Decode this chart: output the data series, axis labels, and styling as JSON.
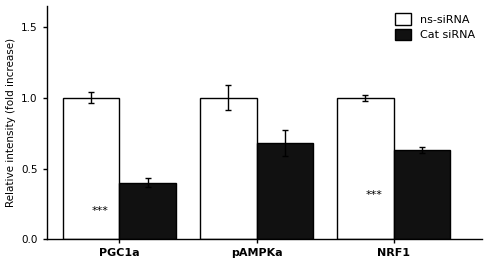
{
  "groups": [
    "PGC1a",
    "pAMPKa",
    "NRF1"
  ],
  "ns_values": [
    1.0,
    1.0,
    1.0
  ],
  "cat_values": [
    0.4,
    0.68,
    0.63
  ],
  "ns_errors": [
    0.04,
    0.09,
    0.02
  ],
  "cat_errors": [
    0.03,
    0.09,
    0.02
  ],
  "ns_color": "#ffffff",
  "cat_color": "#111111",
  "edge_color": "#000000",
  "bar_width": 0.35,
  "group_positions": [
    0.35,
    1.2,
    2.05
  ],
  "xlim": [
    -0.1,
    2.6
  ],
  "ylim": [
    0,
    1.65
  ],
  "yticks": [
    0.0,
    0.5,
    1.0,
    1.5
  ],
  "ylabel": "Relative intensity (fold increase)",
  "legend_ns": "ns-siRNA",
  "legend_cat": "Cat siRNA",
  "significance": [
    true,
    false,
    true
  ],
  "sig_label": "***",
  "sig_fontsize": 8,
  "axis_fontsize": 7.5,
  "tick_fontsize": 7.5,
  "legend_fontsize": 8,
  "linewidth": 1.0,
  "capsize": 2.5,
  "xtick_labels": [
    "PGC1a",
    "pAMPKa",
    "NRF1"
  ],
  "xtick_fontsize": 8,
  "xtick_fontweight": "bold"
}
